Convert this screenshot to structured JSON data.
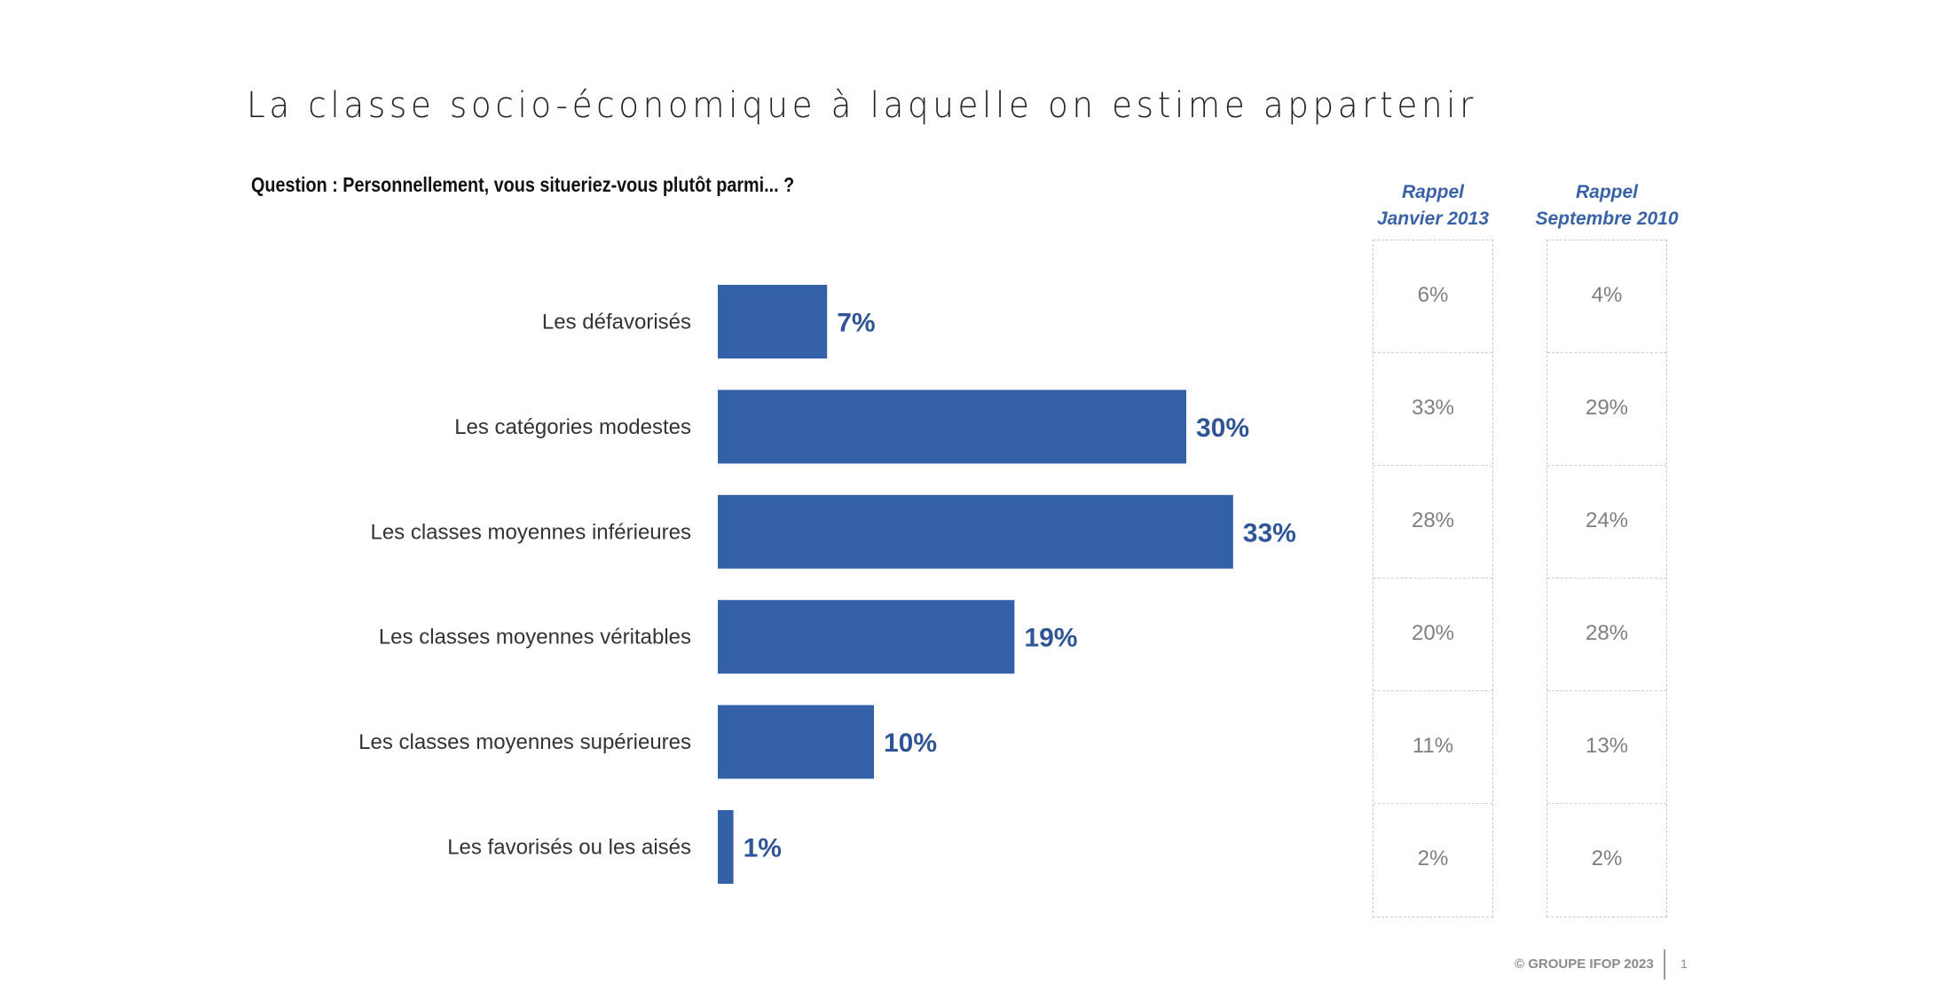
{
  "slide": {
    "title": "La classe socio-économique à laquelle on estime appartenir",
    "question": "Question : Personnellement, vous situeriez-vous plutôt parmi... ?",
    "footer": "© GROUPE IFOP 2023",
    "page_number": "1"
  },
  "colors": {
    "bar": "#3460A8",
    "value_label": "#2F5597",
    "recall_header": "#3A62A7",
    "recall_value": "#7F7F7F"
  },
  "recall": {
    "columns": [
      {
        "line1": "Rappel",
        "line2": "Janvier 2013",
        "values": [
          "6%",
          "33%",
          "28%",
          "20%",
          "11%",
          "2%"
        ]
      },
      {
        "line1": "Rappel",
        "line2": "Septembre 2010",
        "values": [
          "4%",
          "29%",
          "24%",
          "28%",
          "13%",
          "2%"
        ]
      }
    ]
  },
  "chart_data": {
    "type": "bar",
    "orientation": "horizontal",
    "title": "La classe socio-économique à laquelle on estime appartenir",
    "subtitle": "Question : Personnellement, vous situeriez-vous plutôt parmi... ?",
    "xlabel": "",
    "ylabel": "",
    "categories": [
      "Les défavorisés",
      "Les catégories modestes",
      "Les classes moyennes inférieures",
      "Les classes moyennes véritables",
      "Les classes moyennes supérieures",
      "Les favorisés ou les aisés"
    ],
    "values": [
      7,
      30,
      33,
      19,
      10,
      1
    ],
    "value_labels": [
      "7%",
      "30%",
      "33%",
      "19%",
      "10%",
      "1%"
    ],
    "unit": "%",
    "xlim": [
      0,
      33
    ],
    "grid": false,
    "legend": "none",
    "comparison_series": [
      {
        "name": "Rappel Janvier 2013",
        "values": [
          6,
          33,
          28,
          20,
          11,
          2
        ]
      },
      {
        "name": "Rappel Septembre 2010",
        "values": [
          4,
          29,
          24,
          28,
          13,
          2
        ]
      }
    ]
  }
}
